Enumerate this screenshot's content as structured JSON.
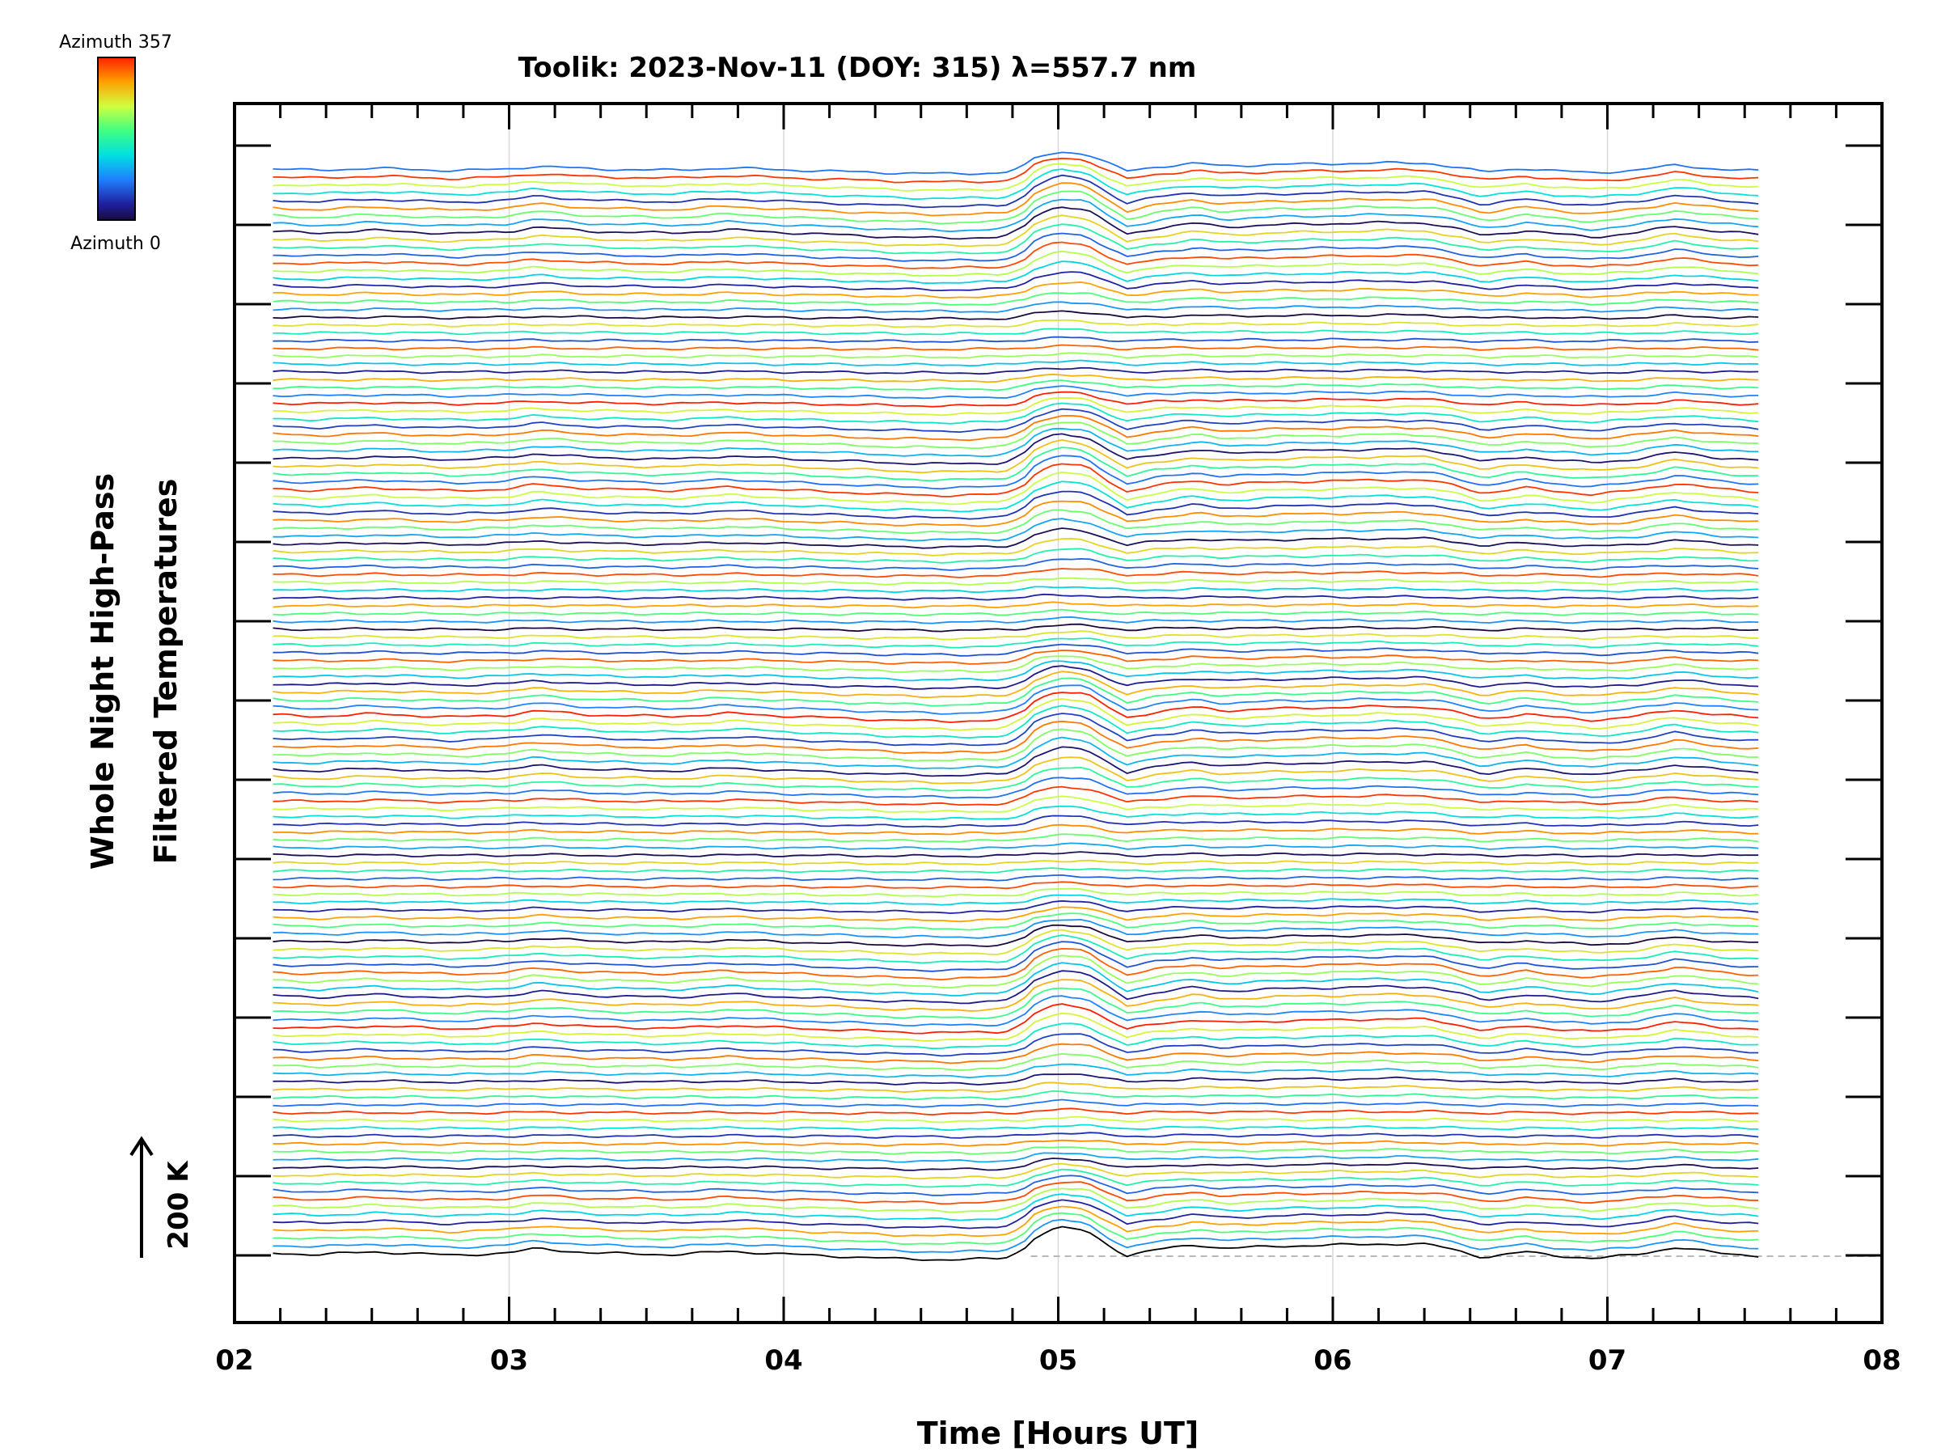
{
  "chart_data": {
    "type": "line",
    "title": "Toolik: 2023-Nov-11 (DOY: 315) λ=557.7 nm",
    "xlabel": "Time [Hours UT]",
    "ylabel": [
      "Whole Night High-Pass",
      "Filtered Temperatures"
    ],
    "xlim": [
      2,
      8
    ],
    "x_tick_labels": [
      "02",
      "03",
      "04",
      "05",
      "06",
      "07",
      "08"
    ],
    "colorbar": {
      "top_label": "Azimuth 357",
      "bottom_label": "Azimuth 0",
      "range": [
        0,
        357
      ],
      "colormap": "rainbow"
    },
    "scale_bar": {
      "label": "200 K"
    },
    "grid": "vertical-lines-at-hours",
    "series_count": 140,
    "series_offset": "stacked",
    "trace_time_range": [
      2.14,
      7.55
    ],
    "common_profile": {
      "x": [
        2.14,
        2.3,
        2.5,
        2.8,
        3.0,
        3.1,
        3.3,
        3.6,
        3.8,
        4.0,
        4.2,
        4.4,
        4.6,
        4.8,
        4.87,
        4.92,
        5.0,
        5.1,
        5.18,
        5.25,
        5.35,
        5.5,
        5.6,
        5.8,
        6.0,
        6.2,
        6.35,
        6.45,
        6.55,
        6.7,
        6.8,
        6.95,
        7.1,
        7.25,
        7.4,
        7.55
      ],
      "y": [
        0,
        -3,
        2,
        -4,
        0,
        8,
        0,
        -3,
        3,
        -2,
        -6,
        -10,
        -12,
        -10,
        5,
        30,
        45,
        40,
        15,
        -5,
        5,
        15,
        8,
        12,
        14,
        16,
        15,
        5,
        -8,
        2,
        -4,
        -10,
        -3,
        10,
        0,
        -5
      ]
    }
  }
}
